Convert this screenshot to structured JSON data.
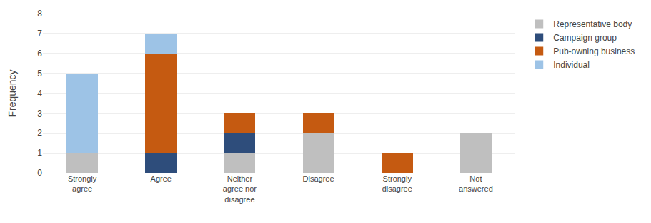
{
  "chart_data": {
    "type": "bar",
    "stacked": true,
    "categories": [
      "Strongly\nagree",
      "Agree",
      "Neither\nagree nor\ndisagree",
      "Disagree",
      "Strongly\ndisagree",
      "Not\nanswered"
    ],
    "series": [
      {
        "name": "Representative body",
        "color": "#BFBFBF",
        "values": [
          1,
          0,
          1,
          2,
          0,
          2
        ]
      },
      {
        "name": "Campaign group",
        "color": "#2E4D7B",
        "values": [
          0,
          1,
          1,
          0,
          0,
          0
        ]
      },
      {
        "name": "Pub-owning business",
        "color": "#C55A11",
        "values": [
          0,
          5,
          1,
          1,
          1,
          0
        ]
      },
      {
        "name": "Individual",
        "color": "#9DC3E6",
        "values": [
          4,
          1,
          0,
          0,
          0,
          0
        ]
      }
    ],
    "ylabel": "Frequency",
    "ylim": [
      0,
      8
    ],
    "yticks": [
      0,
      1,
      2,
      3,
      4,
      5,
      6,
      7,
      8
    ],
    "grid": true,
    "legend": "right"
  }
}
